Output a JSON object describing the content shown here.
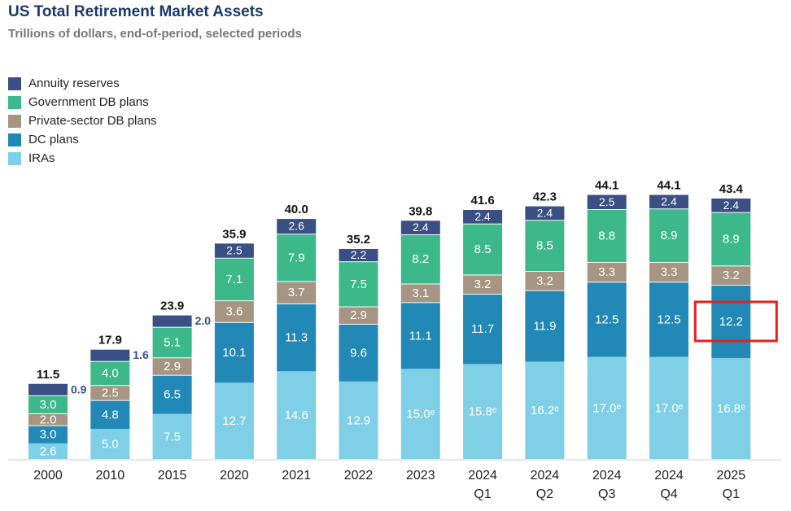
{
  "chart_data": {
    "type": "bar",
    "stacked": true,
    "title": "US Total Retirement Market Assets",
    "subtitle": "Trillions of dollars, end-of-period, selected periods",
    "legend_placement": "top-left",
    "grid": false,
    "categories": [
      "2000",
      "2010",
      "2015",
      "2020",
      "2021",
      "2022",
      "2023",
      "2024\nQ1",
      "2024\nQ2",
      "2024\nQ3",
      "2024\nQ4",
      "2025\nQ1"
    ],
    "totals": [
      "11.5",
      "17.9",
      "23.9",
      "35.9",
      "40.0",
      "35.2",
      "39.8",
      "41.6",
      "42.3",
      "44.1",
      "44.1",
      "43.4"
    ],
    "series": [
      {
        "name": "IRAs",
        "color": "#7fd0e6",
        "values": [
          2.6,
          5.0,
          7.5,
          12.7,
          14.6,
          12.9,
          15.0,
          15.8,
          16.2,
          17.0,
          17.0,
          16.8
        ],
        "labels": [
          "2.6",
          "5.0",
          "7.5",
          "12.7",
          "14.6",
          "12.9",
          "15.0ᵉ",
          "15.8ᵉ",
          "16.2ᵉ",
          "17.0ᵉ",
          "17.0ᵉ",
          "16.8ᵉ"
        ]
      },
      {
        "name": "DC plans",
        "color": "#2288b5",
        "values": [
          3.0,
          4.8,
          6.5,
          10.1,
          11.3,
          9.6,
          11.1,
          11.7,
          11.9,
          12.5,
          12.5,
          12.2
        ],
        "labels": [
          "3.0",
          "4.8",
          "6.5",
          "10.1",
          "11.3",
          "9.6",
          "11.1",
          "11.7",
          "11.9",
          "12.5",
          "12.5",
          "12.2"
        ]
      },
      {
        "name": "Private-sector DB plans",
        "color": "#a59582",
        "values": [
          2.0,
          2.5,
          2.9,
          3.6,
          3.7,
          2.9,
          3.1,
          3.2,
          3.2,
          3.3,
          3.3,
          3.2
        ],
        "labels": [
          "2.0",
          "2.5",
          "2.9",
          "3.6",
          "3.7",
          "2.9",
          "3.1",
          "3.2",
          "3.2",
          "3.3",
          "3.3",
          "3.2"
        ]
      },
      {
        "name": "Government DB plans",
        "color": "#3cb88a",
        "values": [
          3.0,
          4.0,
          5.1,
          7.1,
          7.9,
          7.5,
          8.2,
          8.5,
          8.5,
          8.8,
          8.9,
          8.9
        ],
        "labels": [
          "3.0",
          "4.0",
          "5.1",
          "7.1",
          "7.9",
          "7.5",
          "8.2",
          "8.5",
          "8.5",
          "8.8",
          "8.9",
          "8.9"
        ]
      },
      {
        "name": "Annuity reserves",
        "color": "#3a4f83",
        "values": [
          0.9,
          1.6,
          2.0,
          2.5,
          2.6,
          2.2,
          2.4,
          2.4,
          2.4,
          2.5,
          2.4,
          2.4
        ],
        "labels": [
          "0.9",
          "1.6",
          "2.0",
          "2.5",
          "2.6",
          "2.2",
          "2.4",
          "2.4",
          "2.4",
          "2.5",
          "2.4",
          "2.4"
        ]
      }
    ],
    "highlight": {
      "category_index": 11,
      "series": "DC plans",
      "color": "#e8201c"
    }
  }
}
